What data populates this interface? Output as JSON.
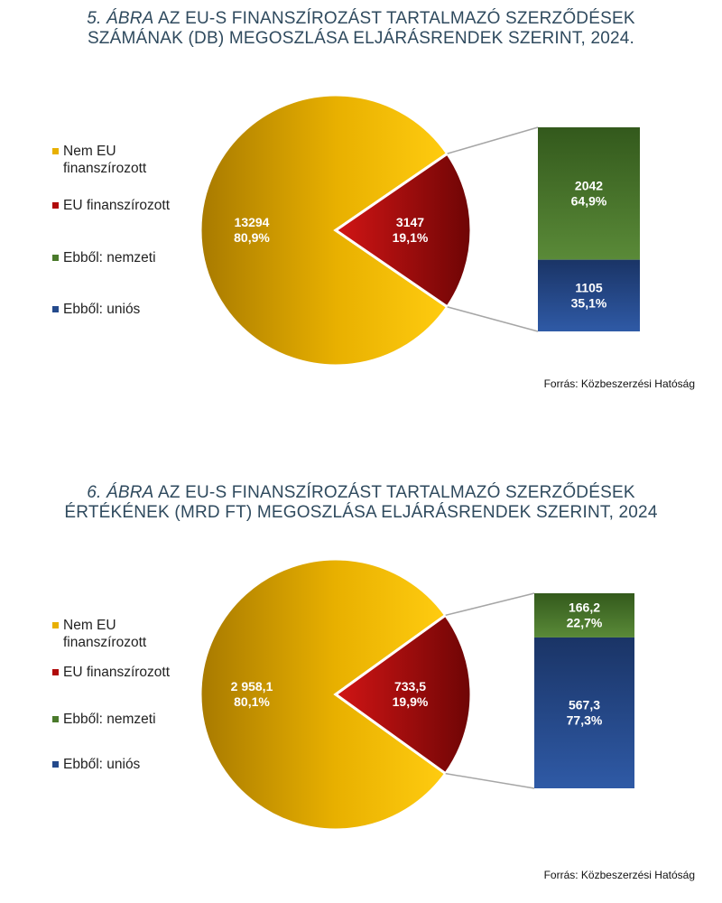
{
  "colors": {
    "nem_eu": "#e8b000",
    "eu": "#b00a0a",
    "nemzeti": "#4a7a2b",
    "unios": "#244a8c",
    "title": "#2f4a5e"
  },
  "chart_data": [
    {
      "type": "pie",
      "title_number": "5. ábra",
      "title_line1": "AZ EU-S FINANSZÍROZÁST TARTALMAZÓ SZERZŐDÉSEK",
      "title_line2": "SZÁMÁNAK (DB) MEGOSZLÁSA ELJÁRÁSRENDEK SZERINT, 2024.",
      "legend": [
        "Nem EU\nfinanszírozott",
        "EU finanszírozott",
        "Ebből: nemzeti",
        "Ebből: uniós"
      ],
      "slices": [
        {
          "name": "Nem EU finanszírozott",
          "value": 13294,
          "value_label": "13294",
          "pct_label": "80,9%"
        },
        {
          "name": "EU finanszírozott",
          "value": 3147,
          "value_label": "3147",
          "pct_label": "19,1%"
        }
      ],
      "breakdown": [
        {
          "name": "Ebből: nemzeti",
          "value": 2042,
          "value_label": "2042",
          "pct_label": "64,9%"
        },
        {
          "name": "Ebből: uniós",
          "value": 1105,
          "value_label": "1105",
          "pct_label": "35,1%"
        }
      ],
      "source": "Forrás: Közbeszerzési Hatóság"
    },
    {
      "type": "pie",
      "title_number": "6. ábra",
      "title_line1": "AZ EU-S FINANSZÍROZÁST TARTALMAZÓ SZERZŐDÉSEK",
      "title_line2": "ÉRTÉKÉNEK (MRD FT)  MEGOSZLÁSA ELJÁRÁSRENDEK SZERINT, 2024",
      "legend": [
        "Nem EU\nfinanszírozott",
        "EU finanszírozott",
        "Ebből: nemzeti",
        "Ebből: uniós"
      ],
      "slices": [
        {
          "name": "Nem EU finanszírozott",
          "value": 2958.1,
          "value_label": "2 958,1",
          "pct_label": "80,1%"
        },
        {
          "name": "EU finanszírozott",
          "value": 733.5,
          "value_label": "733,5",
          "pct_label": "19,9%"
        }
      ],
      "breakdown": [
        {
          "name": "Ebből: nemzeti",
          "value": 166.2,
          "value_label": "166,2",
          "pct_label": "22,7%"
        },
        {
          "name": "Ebből: uniós",
          "value": 567.3,
          "value_label": "567,3",
          "pct_label": "77,3%"
        }
      ],
      "source": "Forrás: Közbeszerzési Hatóság"
    }
  ]
}
